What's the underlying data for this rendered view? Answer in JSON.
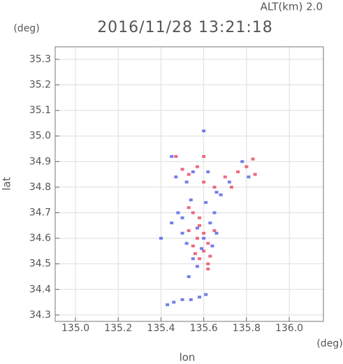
{
  "chart_data": {
    "type": "scatter",
    "title": "2016/11/28 13:21:18",
    "annotation": "ALT(km)  2.0",
    "x_unit": "(deg)",
    "y_unit": "(deg)",
    "xlabel": "lon",
    "ylabel": "lat",
    "xlim": [
      134.905,
      136.16
    ],
    "ylim": [
      34.275,
      35.349
    ],
    "xticks": [
      {
        "value": 135.0,
        "label": "135.0"
      },
      {
        "value": 135.2,
        "label": "135.2"
      },
      {
        "value": 135.4,
        "label": "135.4"
      },
      {
        "value": 135.6,
        "label": "135.6"
      },
      {
        "value": 135.8,
        "label": "135.8"
      },
      {
        "value": 136.0,
        "label": "136.0"
      }
    ],
    "yticks": [
      34.3,
      34.4,
      34.5,
      34.6,
      34.7,
      34.8,
      34.9,
      {
        "value": 35.0,
        "label": "35.0"
      },
      35.1,
      35.2,
      35.3
    ],
    "grid": true,
    "series": [
      {
        "color": "#e8506a",
        "x": [
          135.53,
          135.55,
          135.58,
          135.6,
          135.57,
          135.62,
          135.55,
          135.6,
          135.63,
          135.58,
          135.62,
          135.53,
          135.65,
          135.58,
          135.5,
          135.53,
          135.47,
          135.6,
          135.65,
          135.7,
          135.73,
          135.76,
          135.8,
          135.83,
          135.84,
          135.6,
          135.57,
          135.62,
          135.56
        ],
        "y": [
          34.72,
          34.7,
          34.65,
          34.62,
          34.6,
          34.58,
          34.57,
          34.55,
          34.53,
          34.52,
          34.48,
          34.63,
          34.63,
          34.68,
          34.87,
          34.85,
          34.92,
          34.92,
          34.8,
          34.84,
          34.8,
          34.86,
          34.88,
          34.91,
          34.85,
          34.82,
          34.88,
          34.5,
          34.54
        ]
      },
      {
        "color": "#5a66e6",
        "x": [
          135.45,
          135.48,
          135.5,
          135.52,
          135.55,
          135.57,
          135.6,
          135.63,
          135.65,
          135.61,
          135.54,
          135.5,
          135.57,
          135.59,
          135.64,
          135.47,
          135.52,
          135.55,
          135.45,
          135.62,
          135.66,
          135.68,
          135.72,
          135.78,
          135.81,
          135.4,
          135.43,
          135.46,
          135.5,
          135.54,
          135.58,
          135.61,
          135.6,
          135.53,
          135.66
        ],
        "y": [
          34.66,
          34.7,
          34.62,
          34.58,
          34.52,
          34.49,
          34.6,
          34.66,
          34.7,
          34.74,
          34.75,
          34.68,
          34.64,
          34.56,
          34.57,
          34.84,
          34.82,
          34.86,
          34.92,
          34.86,
          34.78,
          34.77,
          34.82,
          34.9,
          34.84,
          34.6,
          34.34,
          34.35,
          34.36,
          34.36,
          34.37,
          34.38,
          35.02,
          34.45,
          34.62
        ]
      }
    ]
  }
}
